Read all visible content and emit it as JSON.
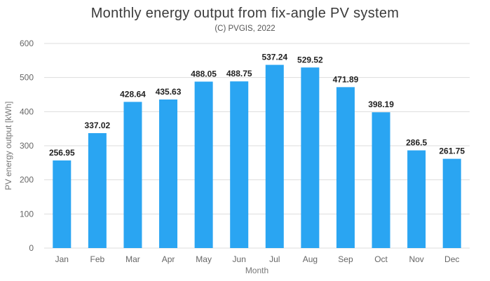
{
  "chart_data": {
    "type": "bar",
    "title": "Monthly energy output from fix-angle PV system",
    "subtitle": "(C) PVGIS, 2022",
    "xlabel": "Month",
    "ylabel": "PV energy output [kWh]",
    "ylim": [
      0,
      600
    ],
    "yticks": [
      0,
      100,
      200,
      300,
      400,
      500,
      600
    ],
    "grid": true,
    "bar_color": "#2aa5f2",
    "categories": [
      "Jan",
      "Feb",
      "Mar",
      "Apr",
      "May",
      "Jun",
      "Jul",
      "Aug",
      "Sep",
      "Oct",
      "Nov",
      "Dec"
    ],
    "values": [
      256.95,
      337.02,
      428.64,
      435.63,
      488.05,
      488.75,
      537.24,
      529.52,
      471.89,
      398.19,
      286.5,
      261.75
    ],
    "value_labels": [
      "256.95",
      "337.02",
      "428.64",
      "435.63",
      "488.05",
      "488.75",
      "537.24",
      "529.52",
      "471.89",
      "398.19",
      "286.5",
      "261.75"
    ]
  }
}
